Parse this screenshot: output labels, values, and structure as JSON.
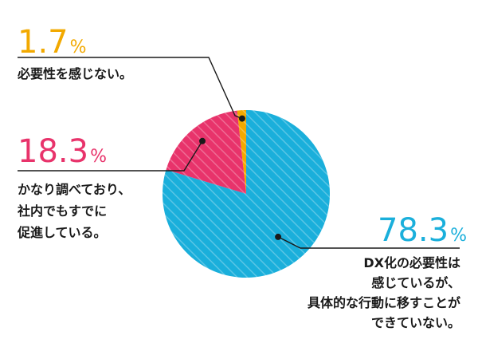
{
  "chart_data": {
    "type": "pie",
    "slices": [
      {
        "value": 1.7,
        "value_text": "1.7",
        "unit": "%",
        "label_lines": [
          "必要性を感じない。"
        ],
        "color": "#f2a900"
      },
      {
        "value": 18.3,
        "value_text": "18.3",
        "unit": "%",
        "label_lines": [
          "かなり調べており、",
          "社内でもすでに",
          "促進している。"
        ],
        "color": "#e8336b"
      },
      {
        "value": 78.3,
        "value_text": "78.3",
        "unit": "%",
        "label_lines": [
          "DX化の必要性は",
          "感じているが、",
          "具体的な行動に移すことが",
          "できていない。"
        ],
        "color": "#1aafdb"
      }
    ]
  }
}
